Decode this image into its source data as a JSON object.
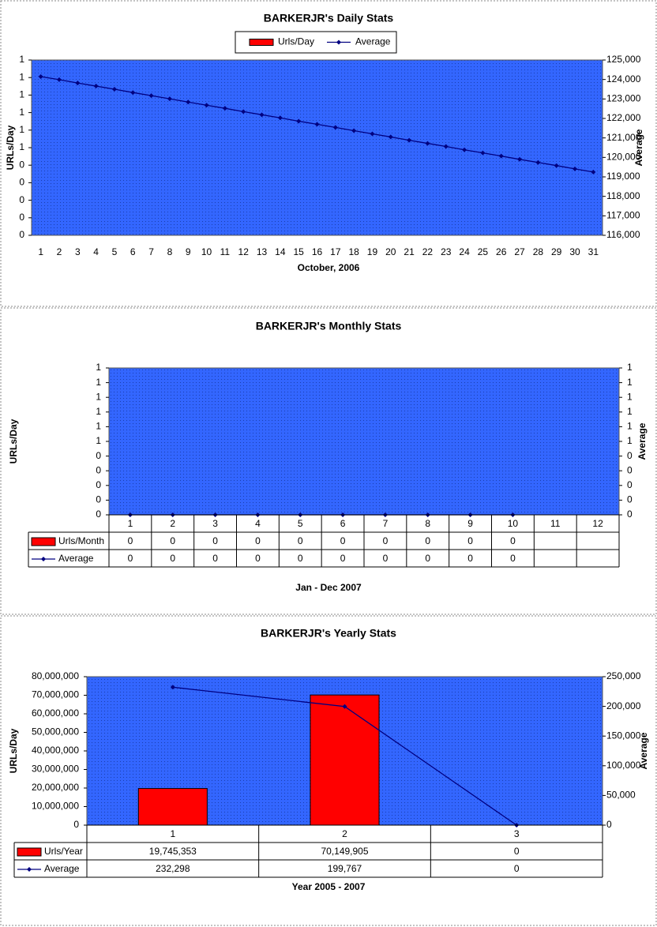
{
  "chart_data": [
    {
      "type": "bar",
      "title": "BARKERJR's Daily Stats",
      "x_label": "October, 2006",
      "y_label": "URLs/Day",
      "y2_label": "Average",
      "legend": "top",
      "categories": [
        1,
        2,
        3,
        4,
        5,
        6,
        7,
        8,
        9,
        10,
        11,
        12,
        13,
        14,
        15,
        16,
        17,
        18,
        19,
        20,
        21,
        22,
        23,
        24,
        25,
        26,
        27,
        28,
        29,
        30,
        31
      ],
      "series": [
        {
          "name": "Urls/Day",
          "type": "bar",
          "color": "#ff0000",
          "values": [
            0,
            0,
            0,
            0,
            0,
            0,
            0,
            0,
            0,
            0,
            0,
            0,
            0,
            0,
            0,
            0,
            0,
            0,
            0,
            0,
            0,
            0,
            0,
            0,
            0,
            0,
            0,
            0,
            0,
            0,
            0
          ]
        },
        {
          "name": "Average",
          "type": "line",
          "axis": "y2",
          "color": "#000080",
          "values": [
            124150,
            123990,
            123820,
            123660,
            123500,
            123330,
            123170,
            123010,
            122840,
            122680,
            122520,
            122350,
            122190,
            122030,
            121860,
            121700,
            121540,
            121370,
            121210,
            121050,
            120880,
            120720,
            120560,
            120390,
            120230,
            120070,
            119900,
            119740,
            119580,
            119410,
            119250
          ]
        }
      ],
      "ylim": [
        0,
        1
      ],
      "yticks": [
        {
          "value": 0,
          "label": "0"
        },
        {
          "value": 0.1,
          "label": "0"
        },
        {
          "value": 0.2,
          "label": "0"
        },
        {
          "value": 0.3,
          "label": "0"
        },
        {
          "value": 0.4,
          "label": "0"
        },
        {
          "value": 0.5,
          "label": "1"
        },
        {
          "value": 0.6,
          "label": "1"
        },
        {
          "value": 0.7,
          "label": "1"
        },
        {
          "value": 0.8,
          "label": "1"
        },
        {
          "value": 0.9,
          "label": "1"
        },
        1
      ],
      "y2lim": [
        116000,
        125000
      ],
      "y2ticks": [
        {
          "value": 116000,
          "label": "116,000"
        },
        {
          "value": 117000,
          "label": "117,000"
        },
        {
          "value": 118000,
          "label": "118,000"
        },
        {
          "value": 119000,
          "label": "119,000"
        },
        {
          "value": 120000,
          "label": "120,000"
        },
        {
          "value": 121000,
          "label": "121,000"
        },
        {
          "value": 122000,
          "label": "122,000"
        },
        {
          "value": 123000,
          "label": "123,000"
        },
        {
          "value": 124000,
          "label": "124,000"
        },
        {
          "value": 125000,
          "label": "125,000"
        }
      ],
      "plot_color": "#3366ff"
    },
    {
      "type": "bar",
      "title": "BARKERJR's Monthly Stats",
      "x_label": "Jan - Dec 2007",
      "y_label": "URLs/Day",
      "y2_label": "Average",
      "data_table": true,
      "categories": [
        1,
        2,
        3,
        4,
        5,
        6,
        7,
        8,
        9,
        10,
        11,
        12
      ],
      "series": [
        {
          "name": "Urls/Month",
          "type": "bar",
          "color": "#ff0000",
          "values": [
            0,
            0,
            0,
            0,
            0,
            0,
            0,
            0,
            0,
            0,
            null,
            null
          ]
        },
        {
          "name": "Average",
          "type": "line",
          "axis": "y2",
          "color": "#000080",
          "values": [
            0,
            0,
            0,
            0,
            0,
            0,
            0,
            0,
            0,
            0,
            null,
            null
          ]
        }
      ],
      "ylim": [
        0,
        1
      ],
      "yticks": [
        {
          "value": 0,
          "label": "0"
        },
        {
          "value": 0.1,
          "label": "0"
        },
        {
          "value": 0.2,
          "label": "0"
        },
        {
          "value": 0.3,
          "label": "0"
        },
        {
          "value": 0.4,
          "label": "0"
        },
        {
          "value": 0.5,
          "label": "1"
        },
        {
          "value": 0.6,
          "label": "1"
        },
        {
          "value": 0.7,
          "label": "1"
        },
        {
          "value": 0.8,
          "label": "1"
        },
        {
          "value": 0.9,
          "label": "1"
        },
        1
      ],
      "y2lim": [
        0,
        1
      ],
      "y2ticks": [
        {
          "value": 0,
          "label": "0"
        },
        {
          "value": 0.1,
          "label": "0"
        },
        {
          "value": 0.2,
          "label": "0"
        },
        {
          "value": 0.3,
          "label": "0"
        },
        {
          "value": 0.4,
          "label": "0"
        },
        {
          "value": 0.5,
          "label": "1"
        },
        {
          "value": 0.6,
          "label": "1"
        },
        {
          "value": 0.7,
          "label": "1"
        },
        {
          "value": 0.8,
          "label": "1"
        },
        {
          "value": 0.9,
          "label": "1"
        },
        1
      ],
      "plot_color": "#3366ff"
    },
    {
      "type": "bar",
      "title": "BARKERJR's Yearly Stats",
      "x_label": "Year 2005 - 2007",
      "y_label": "URLs/Day",
      "y2_label": "Average",
      "data_table": true,
      "categories": [
        1,
        2,
        3
      ],
      "series": [
        {
          "name": "Urls/Year",
          "type": "bar",
          "color": "#ff0000",
          "values": [
            19745353,
            70149905,
            0
          ],
          "value_labels": [
            "19,745,353",
            "70,149,905",
            "0"
          ]
        },
        {
          "name": "Average",
          "type": "line",
          "axis": "y2",
          "color": "#000080",
          "values": [
            232298,
            199767,
            0
          ],
          "value_labels": [
            "232,298",
            "199,767",
            "0"
          ]
        }
      ],
      "ylim": [
        0,
        80000000
      ],
      "yticks": [
        0,
        {
          "value": 10000000,
          "label": "10,000,000"
        },
        {
          "value": 20000000,
          "label": "20,000,000"
        },
        {
          "value": 30000000,
          "label": "30,000,000"
        },
        {
          "value": 40000000,
          "label": "40,000,000"
        },
        {
          "value": 50000000,
          "label": "50,000,000"
        },
        {
          "value": 60000000,
          "label": "60,000,000"
        },
        {
          "value": 70000000,
          "label": "70,000,000"
        },
        {
          "value": 80000000,
          "label": "80,000,000"
        }
      ],
      "y2lim": [
        0,
        250000
      ],
      "y2ticks": [
        0,
        {
          "value": 50000,
          "label": "50,000"
        },
        {
          "value": 100000,
          "label": "100,000"
        },
        {
          "value": 150000,
          "label": "150,000"
        },
        {
          "value": 200000,
          "label": "200,000"
        },
        {
          "value": 250000,
          "label": "250,000"
        }
      ],
      "plot_color": "#3366ff"
    }
  ]
}
